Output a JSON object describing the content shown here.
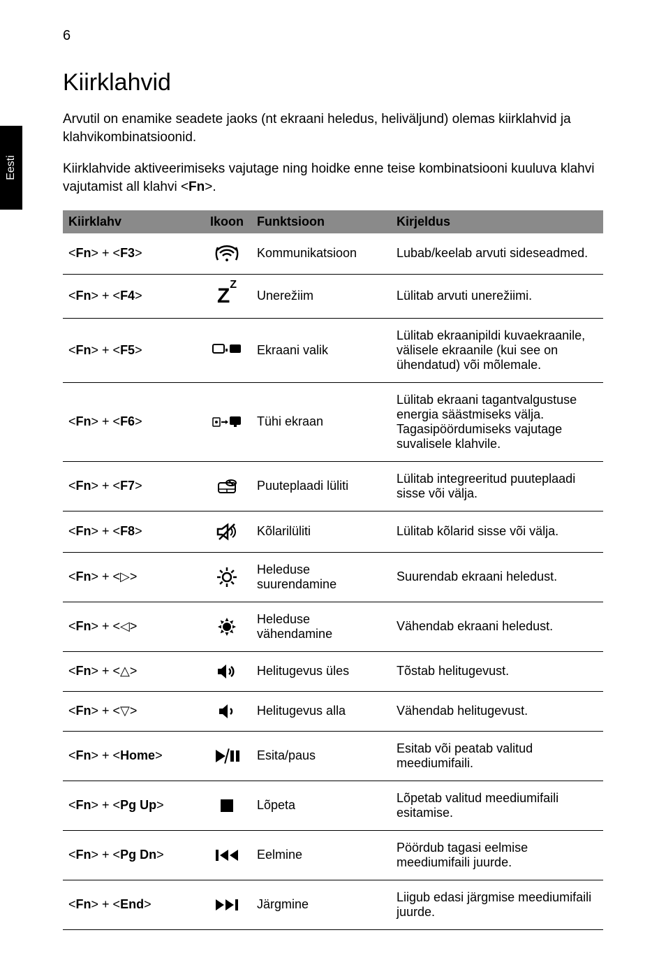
{
  "page_number": "6",
  "side_tab": "Eesti",
  "heading": "Kiirklahvid",
  "intro_paragraphs": [
    "Arvutil on enamike seadete jaoks (nt ekraani heledus, heliväljund) olemas kiirklahvid ja klahvikombinatsioonid.",
    "Kiirklahvide aktiveerimiseks vajutage ning hoidke enne teise kombinatsiooni kuuluva klahvi vajutamist all klahvi <Fn>."
  ],
  "table": {
    "headers": {
      "key": "Kiirklahv",
      "icon": "Ikoon",
      "func": "Funktsioon",
      "desc": "Kirjeldus"
    },
    "rows": [
      {
        "key": "<Fn> + <F3>",
        "icon": "wireless",
        "func": "Kommunikatsioon",
        "desc": "Lubab/keelab arvuti sideseadmed."
      },
      {
        "key": "<Fn> + <F4>",
        "icon": "sleep",
        "func": "Unerežiim",
        "desc": "Lülitab arvuti unerežiimi."
      },
      {
        "key": "<Fn> + <F5>",
        "icon": "display-switch",
        "func": "Ekraani valik",
        "desc": "Lülitab ekraanipildi kuvaekraanile, välisele ekraanile (kui see on ühendatud) või mõlemale."
      },
      {
        "key": "<Fn> + <F6>",
        "icon": "blank-screen",
        "func": "Tühi ekraan",
        "desc": "Lülitab ekraani tagantvalgustuse energia säästmiseks välja. Tagasipöördumiseks vajutage suvalisele klahvile."
      },
      {
        "key": "<Fn> + <F7>",
        "icon": "touchpad",
        "func": "Puuteplaadi lüliti",
        "desc": "Lülitab integreeritud puuteplaadi sisse või välja."
      },
      {
        "key": "<Fn> + <F8>",
        "icon": "speaker-mute",
        "func": "Kõlarilüliti",
        "desc": "Lülitab kõlarid sisse või välja."
      },
      {
        "key": "<Fn> + <▷>",
        "icon": "brightness-up",
        "func": "Heleduse suurendamine",
        "desc": "Suurendab ekraani heledust."
      },
      {
        "key": "<Fn> + <◁>",
        "icon": "brightness-down",
        "func": "Heleduse vähendamine",
        "desc": "Vähendab ekraani heledust."
      },
      {
        "key": "<Fn> + <△>",
        "icon": "volume-up",
        "func": "Helitugevus üles",
        "desc": "Tõstab helitugevust."
      },
      {
        "key": "<Fn> + <▽>",
        "icon": "volume-down",
        "func": "Helitugevus alla",
        "desc": "Vähendab helitugevust."
      },
      {
        "key": "<Fn> + <Home>",
        "icon": "play-pause",
        "func": "Esita/paus",
        "desc": "Esitab või peatab valitud meediumifaili."
      },
      {
        "key": "<Fn> + <Pg Up>",
        "icon": "stop",
        "func": "Lõpeta",
        "desc": "Lõpetab valitud meediumifaili esitamise."
      },
      {
        "key": "<Fn> + <Pg Dn>",
        "icon": "prev",
        "func": "Eelmine",
        "desc": "Pöördub tagasi eelmise meediumifaili juurde."
      },
      {
        "key": "<Fn> + <End>",
        "icon": "next",
        "func": "Järgmine",
        "desc": "Liigub edasi järgmise meediumifaili juurde."
      }
    ]
  },
  "colors": {
    "header_bg": "#8a8a8a",
    "text": "#000000",
    "border": "#000000",
    "tab_bg": "#000000",
    "tab_text": "#ffffff"
  }
}
